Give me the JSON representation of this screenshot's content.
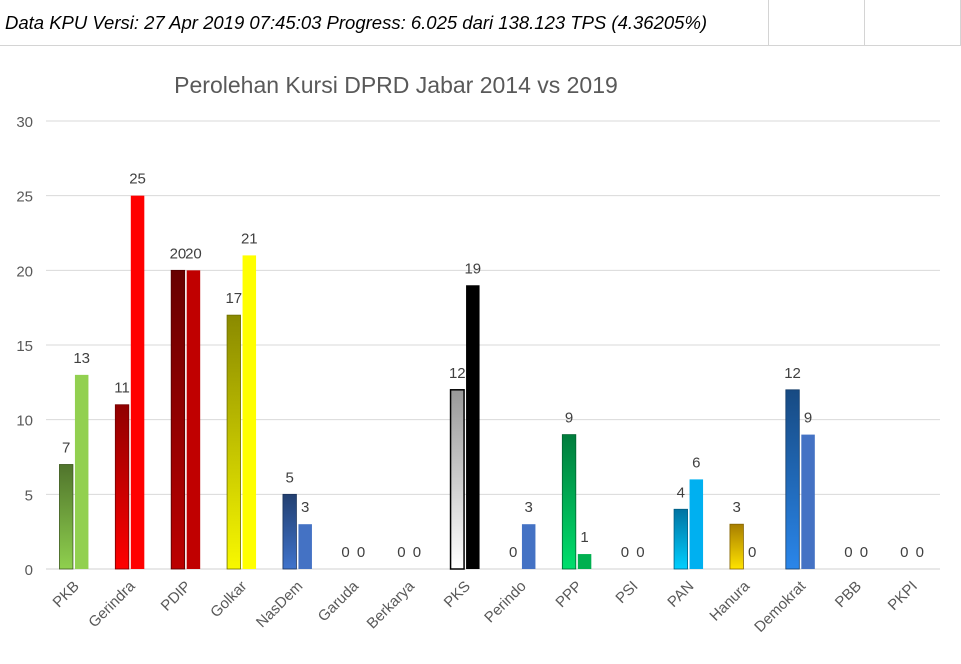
{
  "header": {
    "text": "Data KPU Versi: 27 Apr 2019 07:45:03 Progress: 6.025 dari 138.123 TPS (4.36205%)"
  },
  "chart_data": {
    "type": "bar",
    "title": "Perolehan Kursi DPRD Jabar 2014 vs 2019",
    "xlabel": "",
    "ylabel": "",
    "ylim": [
      0,
      30
    ],
    "yticks": [
      0,
      5,
      10,
      15,
      20,
      25,
      30
    ],
    "grid": true,
    "categories": [
      "PKB",
      "Gerindra",
      "PDIP",
      "Golkar",
      "NasDem",
      "Garuda",
      "Berkarya",
      "PKS",
      "Perindo",
      "PPP",
      "PSI",
      "PAN",
      "Hanura",
      "Demokrat",
      "PBB",
      "PKPI"
    ],
    "series": [
      {
        "values": [
          7,
          11,
          20,
          17,
          5,
          0,
          0,
          12,
          0,
          9,
          0,
          4,
          3,
          12,
          0,
          0
        ]
      },
      {
        "values": [
          13,
          25,
          20,
          21,
          3,
          0,
          0,
          19,
          3,
          1,
          0,
          6,
          0,
          9,
          0,
          0
        ]
      }
    ],
    "colors": {
      "first": [
        "#6a9a3a",
        "#c00000",
        "#8b0000",
        "#b8b800",
        "#2f5597",
        "#999999",
        "#999999",
        "#cccccc",
        "#4472c4",
        "#00a550",
        "#999999",
        "#0099d8",
        "#e0a800",
        "#1f63ad",
        "#999999",
        "#999999"
      ],
      "second": [
        "#92d050",
        "#ff0000",
        "#c00000",
        "#ffff00",
        "#4472c4",
        "#999999",
        "#999999",
        "#000000",
        "#4472c4",
        "#00b050",
        "#999999",
        "#00b0f0",
        "#ffc000",
        "#4472c4",
        "#999999",
        "#999999"
      ]
    }
  }
}
